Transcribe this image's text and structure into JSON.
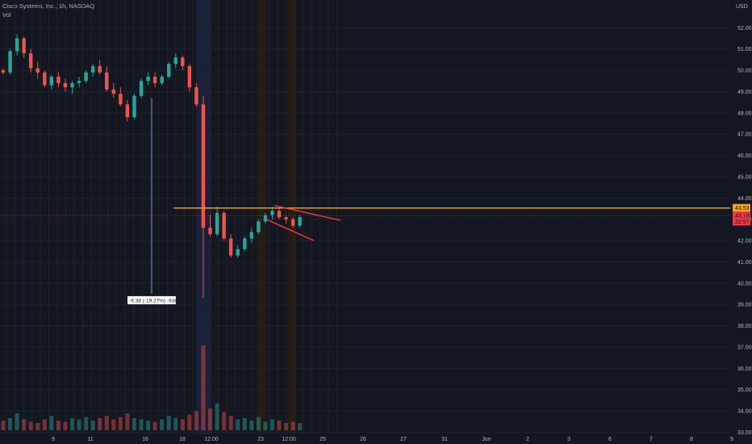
{
  "header": {
    "symbol_line": "Cisco Systems, Inc., 1h, NASDAQ",
    "volume_label": "Vol"
  },
  "currency": "USD",
  "colors": {
    "background": "#131722",
    "up": "#26a69a",
    "down": "#ef5350",
    "resistance": "#f5a623",
    "pattern_lines": "#f23645",
    "measure": "#5b9cf6",
    "session_band": "#2a1f10"
  },
  "chart_data": {
    "type": "candlestick",
    "yaxis": {
      "range": [
        32.9,
        53.0
      ],
      "ticks": [
        "52.00",
        "51.00",
        "50.00",
        "49.00",
        "48.00",
        "47.00",
        "46.00",
        "45.00",
        "44.00",
        "43.00",
        "42.00",
        "41.00",
        "40.00",
        "39.00",
        "38.00",
        "37.00",
        "36.00",
        "35.00",
        "34.00",
        "33.00"
      ]
    },
    "xaxis_ticks": [
      "9",
      "11",
      "16",
      "18",
      "12:00",
      "23",
      "12:00",
      "25",
      "26",
      "27",
      "31",
      "Jun",
      "2",
      "3",
      "6",
      "7",
      "8",
      "9"
    ],
    "price_labels": [
      {
        "label": "43.53",
        "value": 43.53,
        "color": "#f5a623"
      },
      {
        "label": "43.18",
        "value": 43.18,
        "color": "#f23645"
      },
      {
        "label": "22:57",
        "value": 42.9,
        "color": "#f23645"
      }
    ],
    "resistance_level": 43.53,
    "measure_label": "-9.38 (-19.27%) -938",
    "candles_note": "approximate OHLC read from the chart",
    "candles": [
      [
        50.0,
        50.1,
        49.8,
        49.9
      ],
      [
        49.9,
        51.0,
        49.8,
        50.9
      ],
      [
        50.9,
        51.7,
        50.7,
        51.5
      ],
      [
        51.5,
        51.6,
        50.6,
        50.8
      ],
      [
        50.8,
        51.0,
        49.9,
        50.1
      ],
      [
        50.1,
        50.4,
        49.6,
        49.9
      ],
      [
        49.9,
        50.0,
        49.2,
        49.3
      ],
      [
        49.3,
        49.8,
        49.1,
        49.7
      ],
      [
        49.7,
        49.9,
        49.2,
        49.4
      ],
      [
        49.4,
        49.6,
        49.0,
        49.2
      ],
      [
        49.2,
        49.5,
        48.9,
        49.4
      ],
      [
        49.4,
        49.7,
        49.2,
        49.5
      ],
      [
        49.5,
        50.0,
        49.4,
        49.9
      ],
      [
        49.9,
        50.3,
        49.7,
        50.2
      ],
      [
        50.2,
        50.5,
        49.8,
        49.9
      ],
      [
        49.9,
        50.2,
        49.0,
        49.1
      ],
      [
        49.1,
        49.4,
        48.7,
        48.9
      ],
      [
        48.9,
        49.2,
        48.3,
        48.4
      ],
      [
        48.4,
        48.6,
        47.6,
        47.8
      ],
      [
        47.8,
        48.9,
        47.7,
        48.8
      ],
      [
        48.8,
        49.6,
        48.7,
        49.5
      ],
      [
        49.5,
        49.9,
        49.3,
        49.7
      ],
      [
        49.7,
        49.9,
        49.2,
        49.4
      ],
      [
        49.4,
        49.8,
        49.3,
        49.7
      ],
      [
        49.7,
        50.4,
        49.6,
        50.3
      ],
      [
        50.3,
        50.8,
        50.1,
        50.6
      ],
      [
        50.6,
        50.7,
        50.0,
        50.2
      ],
      [
        50.2,
        50.3,
        49.0,
        49.2
      ],
      [
        49.2,
        49.4,
        48.3,
        48.4
      ],
      [
        48.4,
        48.8,
        39.3,
        42.6
      ],
      [
        42.6,
        43.2,
        42.2,
        42.3
      ],
      [
        42.3,
        43.6,
        42.2,
        43.3
      ],
      [
        43.3,
        43.4,
        42.0,
        42.1
      ],
      [
        42.1,
        42.3,
        41.2,
        41.3
      ],
      [
        41.3,
        41.8,
        41.2,
        41.6
      ],
      [
        41.6,
        42.2,
        41.5,
        42.1
      ],
      [
        42.1,
        42.6,
        41.9,
        42.4
      ],
      [
        42.4,
        43.0,
        42.3,
        42.9
      ],
      [
        42.9,
        43.3,
        42.8,
        43.2
      ],
      [
        43.2,
        43.6,
        43.0,
        43.4
      ],
      [
        43.4,
        43.5,
        43.0,
        43.1
      ],
      [
        43.1,
        43.2,
        42.8,
        43.0
      ],
      [
        43.0,
        43.1,
        42.6,
        42.7
      ],
      [
        42.7,
        43.2,
        42.6,
        43.1
      ]
    ]
  }
}
